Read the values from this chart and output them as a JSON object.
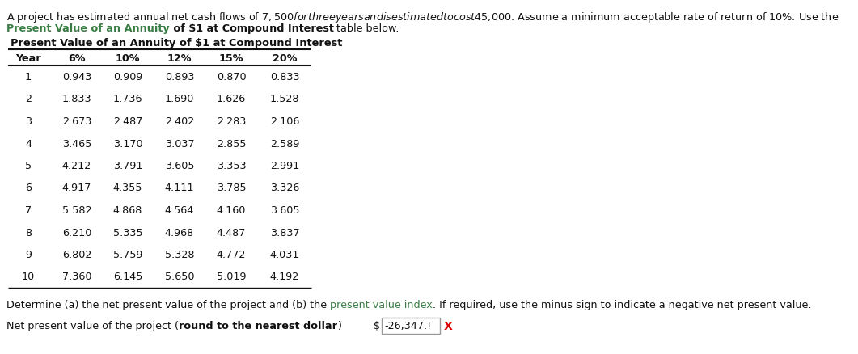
{
  "intro_text_line1": "A project has estimated annual net cash flows of $7,500 for three years and is estimated to cost $45,000. Assume a minimum acceptable rate of return of 10%. Use the",
  "intro_green": "Present Value of an Annuity",
  "intro_bold": " of $1 at Compound Interest",
  "intro_end": " table below.",
  "table_title": "Present Value of an Annuity of $1 at Compound Interest",
  "headers": [
    "Year",
    "6%",
    "10%",
    "12%",
    "15%",
    "20%"
  ],
  "rows": [
    [
      "1",
      "0.943",
      "0.909",
      "0.893",
      "0.870",
      "0.833"
    ],
    [
      "2",
      "1.833",
      "1.736",
      "1.690",
      "1.626",
      "1.528"
    ],
    [
      "3",
      "2.673",
      "2.487",
      "2.402",
      "2.283",
      "2.106"
    ],
    [
      "4",
      "3.465",
      "3.170",
      "3.037",
      "2.855",
      "2.589"
    ],
    [
      "5",
      "4.212",
      "3.791",
      "3.605",
      "3.353",
      "2.991"
    ],
    [
      "6",
      "4.917",
      "4.355",
      "4.111",
      "3.785",
      "3.326"
    ],
    [
      "7",
      "5.582",
      "4.868",
      "4.564",
      "4.160",
      "3.605"
    ],
    [
      "8",
      "6.210",
      "5.335",
      "4.968",
      "4.487",
      "3.837"
    ],
    [
      "9",
      "6.802",
      "5.759",
      "5.328",
      "4.772",
      "4.031"
    ],
    [
      "10",
      "7.360",
      "6.145",
      "5.650",
      "5.019",
      "4.192"
    ]
  ],
  "determine_pre": "Determine (a) the net present value of the project and (b) the ",
  "determine_green": "present value index",
  "determine_post": ". If required, use the minus sign to indicate a negative net present value.",
  "npv_pre": "Net present value of the project (",
  "npv_bold": "round to the nearest dollar",
  "npv_post": ")",
  "npv_dollar": "$",
  "npv_value": "-26,347.!",
  "npv_x": "X",
  "green_color": "#3a7d44",
  "red_color": "#dd0000",
  "black_color": "#111111",
  "bg_color": "#FFFFFF"
}
